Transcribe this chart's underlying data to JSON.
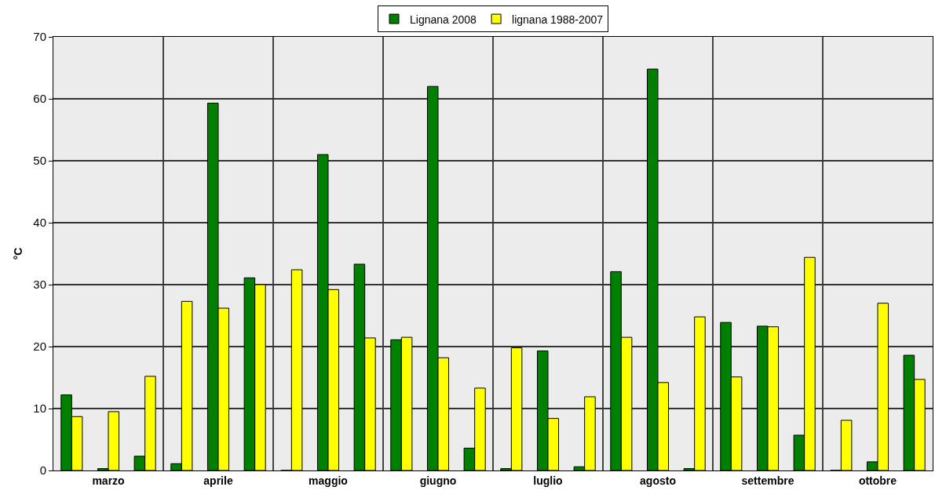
{
  "chart_data": {
    "type": "bar",
    "ylabel": "°C",
    "categories": [
      null,
      "marzo",
      null,
      null,
      "aprile",
      null,
      null,
      "maggio",
      null,
      null,
      "giugno",
      null,
      null,
      "luglio",
      null,
      null,
      "agosto",
      null,
      null,
      "settembre",
      null,
      null,
      "ottobre",
      null
    ],
    "series": [
      {
        "name": "Lignana 2008",
        "color": "#008000",
        "values": [
          12.2,
          0.3,
          2.3,
          1.1,
          59.3,
          31.1,
          0,
          51.0,
          33.3,
          21.1,
          62.0,
          3.6,
          0.3,
          19.3,
          0.6,
          32.1,
          64.8,
          0.3,
          23.9,
          23.3,
          5.7,
          0,
          1.4,
          18.6
        ]
      },
      {
        "name": "lignana 1988-2007",
        "color": "#ffff00",
        "values": [
          8.7,
          9.5,
          15.2,
          27.3,
          26.2,
          30.0,
          32.4,
          29.2,
          21.4,
          21.5,
          18.2,
          13.3,
          19.8,
          8.4,
          11.9,
          21.5,
          14.2,
          24.8,
          15.1,
          23.2,
          34.4,
          8.1,
          27.0,
          14.7
        ]
      }
    ],
    "ylim": [
      0,
      70
    ],
    "yticks": [
      0,
      10,
      20,
      30,
      40,
      50,
      60,
      70
    ],
    "grid": true,
    "legend": "top"
  }
}
